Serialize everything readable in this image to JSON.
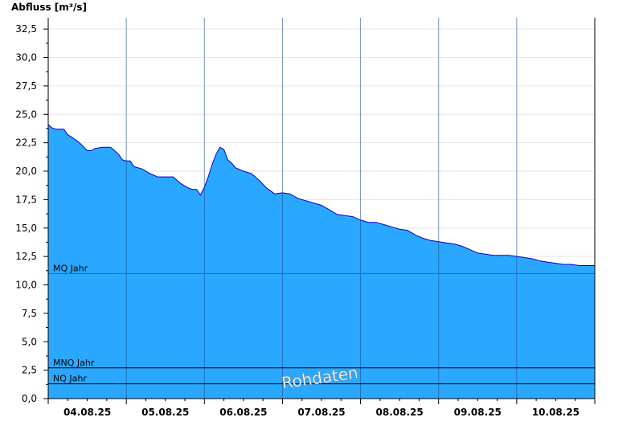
{
  "chart_data": {
    "type": "area",
    "title": "",
    "ylabel": "Abfluss [m³/s]",
    "xlabel": "",
    "ylim": [
      0,
      33.5
    ],
    "yticks": [
      "0,0",
      "2,5",
      "5,0",
      "7,5",
      "10,0",
      "12,5",
      "15,0",
      "17,5",
      "20,0",
      "22,5",
      "25,0",
      "27,5",
      "30,0",
      "32,5"
    ],
    "x_range_days": [
      0,
      7
    ],
    "x_tick_labels": [
      "04.08.25",
      "05.08.25",
      "06.08.25",
      "07.08.25",
      "08.08.25",
      "09.08.25",
      "10.08.25"
    ],
    "grid": true,
    "watermark": "Rohdaten",
    "reference_lines": [
      {
        "name": "MQ Jahr",
        "value": 11.0,
        "color": "#2e7d32"
      },
      {
        "name": "MNQ Jahr",
        "value": 2.7,
        "color": "#000000"
      },
      {
        "name": "NQ Jahr",
        "value": 1.3,
        "color": "#000000"
      }
    ],
    "colors": {
      "fill": "#2aa8ff",
      "line": "#0000cc"
    },
    "series": [
      {
        "x": [
          0.0,
          0.05,
          0.1,
          0.2,
          0.25,
          0.3,
          0.4,
          0.5,
          0.55,
          0.6,
          0.7,
          0.8,
          0.9,
          0.95,
          1.0,
          1.05,
          1.1,
          1.2,
          1.3,
          1.4,
          1.5,
          1.6,
          1.7,
          1.8,
          1.85,
          1.9,
          1.95,
          2.0,
          2.05,
          2.1,
          2.15,
          2.2,
          2.25,
          2.3,
          2.35,
          2.4,
          2.5,
          2.6,
          2.7,
          2.8,
          2.9,
          3.0,
          3.1,
          3.2,
          3.3,
          3.4,
          3.5,
          3.6,
          3.7,
          3.8,
          3.9,
          4.0,
          4.1,
          4.2,
          4.3,
          4.4,
          4.5,
          4.6,
          4.7,
          4.8,
          4.9,
          5.0,
          5.1,
          5.2,
          5.3,
          5.4,
          5.5,
          5.6,
          5.7,
          5.8,
          5.9,
          6.0,
          6.1,
          6.2,
          6.3,
          6.4,
          6.5,
          6.6,
          6.7,
          6.8,
          6.9,
          7.0
        ],
        "y": [
          24.1,
          23.8,
          23.7,
          23.7,
          23.2,
          23.0,
          22.5,
          21.8,
          21.8,
          22.0,
          22.1,
          22.1,
          21.5,
          21.0,
          20.9,
          20.9,
          20.4,
          20.2,
          19.8,
          19.5,
          19.5,
          19.5,
          18.9,
          18.5,
          18.4,
          18.4,
          17.9,
          18.6,
          19.5,
          20.6,
          21.5,
          22.1,
          21.9,
          21.0,
          20.7,
          20.3,
          20.0,
          19.8,
          19.2,
          18.5,
          18.0,
          18.1,
          18.0,
          17.6,
          17.4,
          17.2,
          17.0,
          16.6,
          16.2,
          16.1,
          16.0,
          15.7,
          15.5,
          15.5,
          15.3,
          15.1,
          14.9,
          14.8,
          14.4,
          14.1,
          13.9,
          13.8,
          13.7,
          13.6,
          13.4,
          13.1,
          12.8,
          12.7,
          12.6,
          12.6,
          12.6,
          12.5,
          12.4,
          12.3,
          12.1,
          12.0,
          11.9,
          11.8,
          11.8,
          11.7,
          11.7,
          11.7
        ]
      }
    ]
  }
}
